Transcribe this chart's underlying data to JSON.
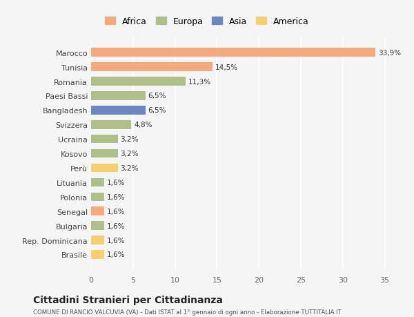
{
  "countries": [
    "Brasile",
    "Rep. Dominicana",
    "Bulgaria",
    "Senegal",
    "Polonia",
    "Lituania",
    "Perù",
    "Kosovo",
    "Ucraina",
    "Svizzera",
    "Bangladesh",
    "Paesi Bassi",
    "Romania",
    "Tunisia",
    "Marocco"
  ],
  "values": [
    1.6,
    1.6,
    1.6,
    1.6,
    1.6,
    1.6,
    3.2,
    3.2,
    3.2,
    4.8,
    6.5,
    6.5,
    11.3,
    14.5,
    33.9
  ],
  "continents": [
    "America",
    "America",
    "Europa",
    "Africa",
    "Europa",
    "Europa",
    "America",
    "Europa",
    "Europa",
    "Europa",
    "Asia",
    "Europa",
    "Europa",
    "Africa",
    "Africa"
  ],
  "colors": {
    "Africa": "#F4A97F",
    "Europa": "#AFBF8A",
    "Asia": "#6E87C0",
    "America": "#F5D070"
  },
  "legend_order": [
    "Africa",
    "Europa",
    "Asia",
    "America"
  ],
  "title": "Cittadini Stranieri per Cittadinanza",
  "subtitle": "COMUNE DI RANCIO VALCUVIA (VA) - Dati ISTAT al 1° gennaio di ogni anno - Elaborazione TUTTITALIA.IT",
  "xlim": [
    0,
    37
  ],
  "xticks": [
    0,
    5,
    10,
    15,
    20,
    25,
    30,
    35
  ],
  "bg_color": "#f5f5f5",
  "bar_height": 0.6
}
